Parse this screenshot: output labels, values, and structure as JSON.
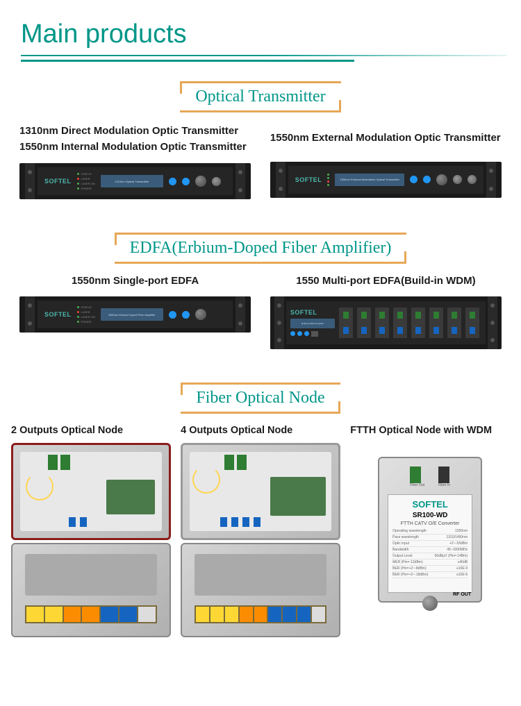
{
  "header": {
    "title": "Main products"
  },
  "sections": {
    "optical_transmitter": {
      "title": "Optical Transmitter",
      "left_labels": [
        "1310nm Direct Modulation Optic Transmitter",
        "1550nm Internal Modulation Optic Transmitter"
      ],
      "right_label": "1550nm External Modulation Optic Transmitter",
      "brand": "SOFTEL",
      "lcd_text_left": "1310nm Optical Transmitter",
      "lcd_text_right": "1550nm External Modulation Optical Transmitter"
    },
    "edfa": {
      "title": "EDFA(Erbium-Doped Fiber Amplifier)",
      "left_label": "1550nm Single-port EDFA",
      "right_label": "1550 Multi-port EDFA(Build-in WDM)",
      "brand": "SOFTEL",
      "lcd_text": "1550nm Erbium Doped Fiber Amplifier"
    },
    "fiber_node": {
      "title": "Fiber Optical Node",
      "col1_label": "2 Outputs Optical Node",
      "col2_label": "4 Outputs Optical Node",
      "col3_label": "FTTH Optical  Node with WDM",
      "ftth": {
        "brand": "SOFTEL",
        "model": "SR100-WD",
        "sub": "FTTH CATV O/E Converter",
        "port_out": "Fiber Out",
        "port_in": "Fiber In",
        "rf_out": "RF OUT",
        "specs": [
          {
            "k": "Operating wavelength",
            "v": "1550nm"
          },
          {
            "k": "Pass wavelength",
            "v": "1310/1490nm"
          },
          {
            "k": "Optic input",
            "v": "+2~-18dBm"
          },
          {
            "k": "Bandwidth",
            "v": "45~1000MHz"
          },
          {
            "k": "Output Level",
            "v": "60dBμV (Pin=-14Bm)"
          },
          {
            "k": "MER (Pin=-12dBm)",
            "v": "≥40dB"
          },
          {
            "k": "BER (Pin=+2~-8dBm)",
            "v": "≤10E-9"
          },
          {
            "k": "BER (Pin=+2~-18dBm)",
            "v": "≤10E-6"
          }
        ]
      }
    }
  },
  "colors": {
    "accent": "#009688",
    "bracket": "#e6a756",
    "text": "#1a1a1a"
  }
}
